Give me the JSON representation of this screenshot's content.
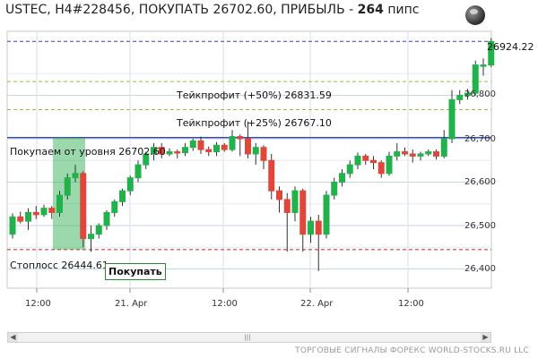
{
  "header": {
    "title": "USTEC, H4#228456, ПОКУПАТЬ 26702.60, ПРИБЫЛЬ - ",
    "profit": "264",
    "unit": " пипс"
  },
  "levels": {
    "current_price": "26924.22",
    "tp50": "Тейкпрофит (+50%) 26831.59",
    "tp25": "Тейкпрофит (+25%) 26767.10",
    "entry": "Покупаем от уровня 26702.60",
    "stop": "Стоплосс 26444.61"
  },
  "buy_label": "Покупать",
  "footer": "ТОРГОВЫЕ СИГНАЛЫ ФОРЕКС WORLD-STOCKS.RU LLC",
  "icons": {
    "globe": "globe-icon",
    "scroll_left": "arrow-left-icon",
    "scroll_right": "arrow-right-icon",
    "scroll_thumb": "grip-icon"
  },
  "colors": {
    "bull": "#22b24c",
    "bear": "#e0473b",
    "entry": "#1f2fa8",
    "stop": "#c82020",
    "takeprofit": "#8fc23f",
    "current": "#3a3ad0"
  },
  "chart_data": {
    "type": "candlestick",
    "y_ticks": [
      "26,800",
      "26,700",
      "26,600",
      "26,500",
      "26,400"
    ],
    "y_tick_values": [
      26800,
      26700,
      26600,
      26500,
      26400
    ],
    "x_ticks": [
      "12:00",
      "21. Apr",
      "12:00",
      "22. Apr",
      "12:00"
    ],
    "levels": [
      26924.22,
      26831.59,
      26767.1,
      26702.6,
      26444.61
    ],
    "candles": [
      [
        26480,
        26520,
        26470,
        26528
      ],
      [
        26520,
        26510,
        26505,
        26532
      ],
      [
        26510,
        26530,
        26490,
        26540
      ],
      [
        26530,
        26525,
        26515,
        26545
      ],
      [
        26525,
        26540,
        26520,
        26548
      ],
      [
        26540,
        26530,
        26515,
        26545
      ],
      [
        26530,
        26570,
        26520,
        26580
      ],
      [
        26570,
        26610,
        26560,
        26620
      ],
      [
        26610,
        26620,
        26600,
        26640
      ],
      [
        26620,
        26470,
        26450,
        26625
      ],
      [
        26470,
        26480,
        26440,
        26500
      ],
      [
        26480,
        26500,
        26470,
        26505
      ],
      [
        26500,
        26530,
        26490,
        26535
      ],
      [
        26530,
        26555,
        26520,
        26560
      ],
      [
        26555,
        26580,
        26545,
        26585
      ],
      [
        26580,
        26610,
        26570,
        26615
      ],
      [
        26610,
        26640,
        26600,
        26650
      ],
      [
        26640,
        26665,
        26630,
        26670
      ],
      [
        26665,
        26680,
        26650,
        26690
      ],
      [
        26680,
        26665,
        26655,
        26690
      ],
      [
        26665,
        26670,
        26660,
        26678
      ],
      [
        26670,
        26668,
        26655,
        26675
      ],
      [
        26668,
        26680,
        26660,
        26690
      ],
      [
        26680,
        26695,
        26672,
        26700
      ],
      [
        26695,
        26675,
        26665,
        26705
      ],
      [
        26675,
        26670,
        26660,
        26682
      ],
      [
        26670,
        26685,
        26660,
        26692
      ],
      [
        26685,
        26675,
        26670,
        26690
      ],
      [
        26675,
        26705,
        26670,
        26720
      ],
      [
        26705,
        26700,
        26660,
        26710
      ],
      [
        26700,
        26665,
        26655,
        26740
      ],
      [
        26665,
        26680,
        26640,
        26690
      ],
      [
        26680,
        26650,
        26630,
        26685
      ],
      [
        26650,
        26580,
        26560,
        26665
      ],
      [
        26580,
        26560,
        26530,
        26590
      ],
      [
        26560,
        26530,
        26440,
        26575
      ],
      [
        26530,
        26580,
        26510,
        26590
      ],
      [
        26580,
        26480,
        26440,
        26585
      ],
      [
        26480,
        26510,
        26460,
        26520
      ],
      [
        26510,
        26480,
        26395,
        26525
      ],
      [
        26480,
        26570,
        26470,
        26580
      ],
      [
        26570,
        26600,
        26560,
        26610
      ],
      [
        26600,
        26620,
        26590,
        26630
      ],
      [
        26620,
        26640,
        26610,
        26650
      ],
      [
        26640,
        26660,
        26630,
        26668
      ],
      [
        26660,
        26650,
        26640,
        26665
      ],
      [
        26650,
        26645,
        26630,
        26660
      ],
      [
        26645,
        26620,
        26610,
        26650
      ],
      [
        26620,
        26660,
        26615,
        26670
      ],
      [
        26660,
        26670,
        26650,
        26690
      ],
      [
        26670,
        26665,
        26660,
        26680
      ],
      [
        26665,
        26660,
        26645,
        26675
      ],
      [
        26660,
        26665,
        26650,
        26670
      ],
      [
        26665,
        26670,
        26660,
        26675
      ],
      [
        26670,
        26660,
        26652,
        26675
      ],
      [
        26660,
        26700,
        26655,
        26720
      ],
      [
        26700,
        26790,
        26690,
        26812
      ],
      [
        26790,
        26800,
        26780,
        26812
      ],
      [
        26800,
        26805,
        26790,
        26815
      ],
      [
        26805,
        26870,
        26800,
        26880
      ],
      [
        26870,
        26870,
        26845,
        26885
      ],
      [
        26870,
        26924,
        26865,
        26932
      ]
    ]
  }
}
